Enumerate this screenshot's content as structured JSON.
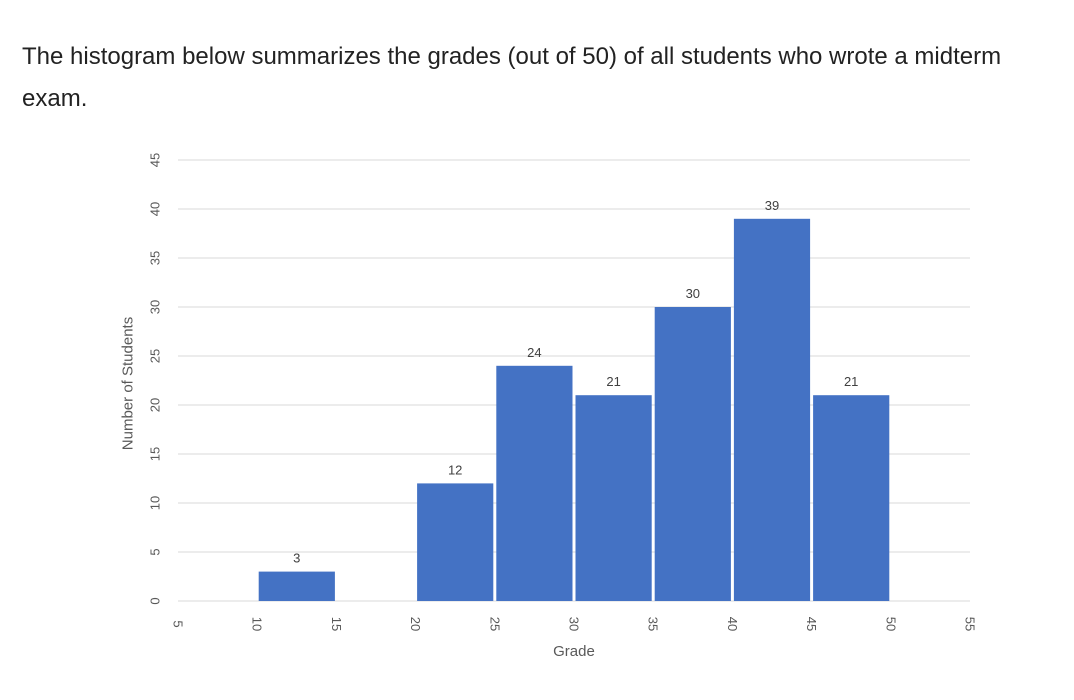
{
  "intro": {
    "text": "The histogram below summarizes the grades (out of 50) of all students who wrote a midterm exam."
  },
  "chart_data": {
    "type": "bar",
    "title": "",
    "xlabel": "Grade",
    "ylabel": "Number of Students",
    "bins": [
      [
        10,
        15
      ],
      [
        20,
        25
      ],
      [
        25,
        30
      ],
      [
        30,
        35
      ],
      [
        35,
        40
      ],
      [
        40,
        45
      ],
      [
        45,
        50
      ]
    ],
    "values": [
      3,
      12,
      24,
      21,
      30,
      39,
      21
    ],
    "data_labels": [
      "3",
      "12",
      "24",
      "21",
      "30",
      "39",
      "21"
    ],
    "x_ticks": [
      "5",
      "10",
      "15",
      "20",
      "25",
      "30",
      "35",
      "40",
      "45",
      "50",
      "55"
    ],
    "y_ticks": [
      "0",
      "5",
      "10",
      "15",
      "20",
      "25",
      "30",
      "35",
      "40",
      "45"
    ],
    "xlim": [
      5,
      55
    ],
    "ylim": [
      0,
      45
    ],
    "grid": "horizontal",
    "legend": "none",
    "bar_color": "#4472C4",
    "grid_color": "#D9D9D9"
  }
}
